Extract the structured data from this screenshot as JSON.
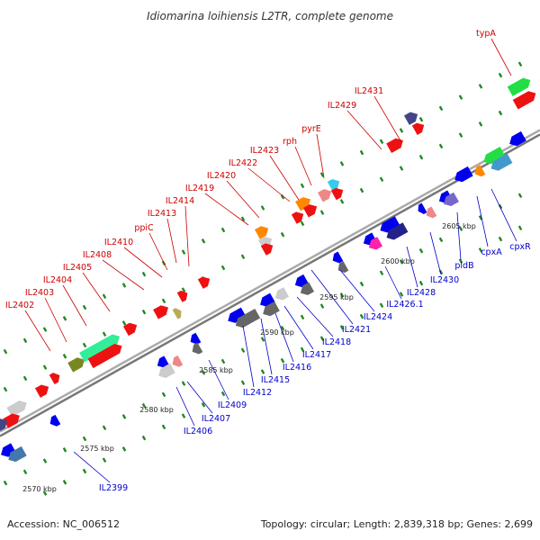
{
  "title": "Idiomarina loihiensis L2TR, complete genome",
  "footer": {
    "accession": "Accession: NC_006512",
    "summary": "Topology: circular; Length: 2,839,318 bp; Genes: 2,699"
  },
  "colors": {
    "background": "#ffffff",
    "backbone": "#999999",
    "forward_label": "#cc0000",
    "reverse_label": "#0000cc",
    "tick": "#228822"
  },
  "ticks": [
    "2570 kbp",
    "2575 kbp",
    "2580 kbp",
    "2585 kbp",
    "2590 kbp",
    "2595 kbp",
    "2600 kbp",
    "2605 kbp"
  ],
  "forward_labels": [
    "IL2402",
    "IL2403",
    "IL2404",
    "IL2405",
    "IL2408",
    "IL2410",
    "ppiC",
    "IL2413",
    "IL2414",
    "IL2419",
    "IL2420",
    "IL2422",
    "IL2423",
    "rph",
    "pyrE",
    "IL2429",
    "IL2431",
    "typA"
  ],
  "reverse_labels": [
    "IL2399",
    "IL2406",
    "IL2407",
    "IL2409",
    "IL2412",
    "IL2415",
    "IL2416",
    "IL2417",
    "IL2418",
    "IL2421",
    "IL2424",
    "IL2426.1",
    "IL2428",
    "IL2430",
    "pldB",
    "cpxA",
    "cpxR"
  ]
}
